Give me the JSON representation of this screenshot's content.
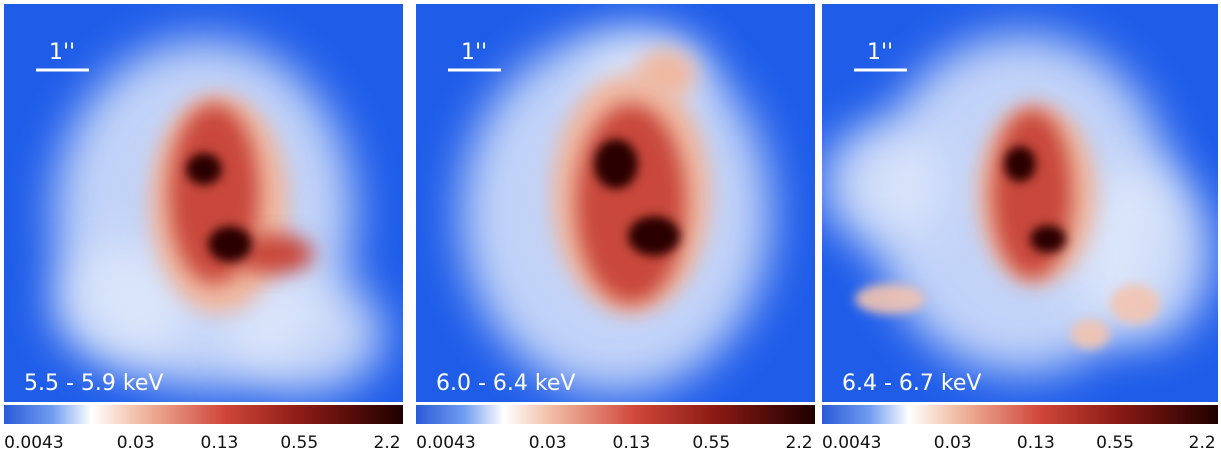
{
  "panels": [
    {
      "energy_label": "5.5 - 5.9 keV",
      "scale_label": "1''",
      "colorbar_ticks": [
        "0.0043",
        "0.03",
        "0.13",
        "0.55",
        "2.2"
      ]
    },
    {
      "energy_label": "6.0 - 6.4 keV",
      "scale_label": "1''",
      "colorbar_ticks": [
        "0.0043",
        "0.03",
        "0.13",
        "0.55",
        "2.2"
      ]
    },
    {
      "energy_label": "6.4 - 6.7 keV",
      "scale_label": "1''",
      "colorbar_ticks": [
        "0.0043",
        "0.03",
        "0.13",
        "0.55",
        "2.2"
      ]
    }
  ]
}
